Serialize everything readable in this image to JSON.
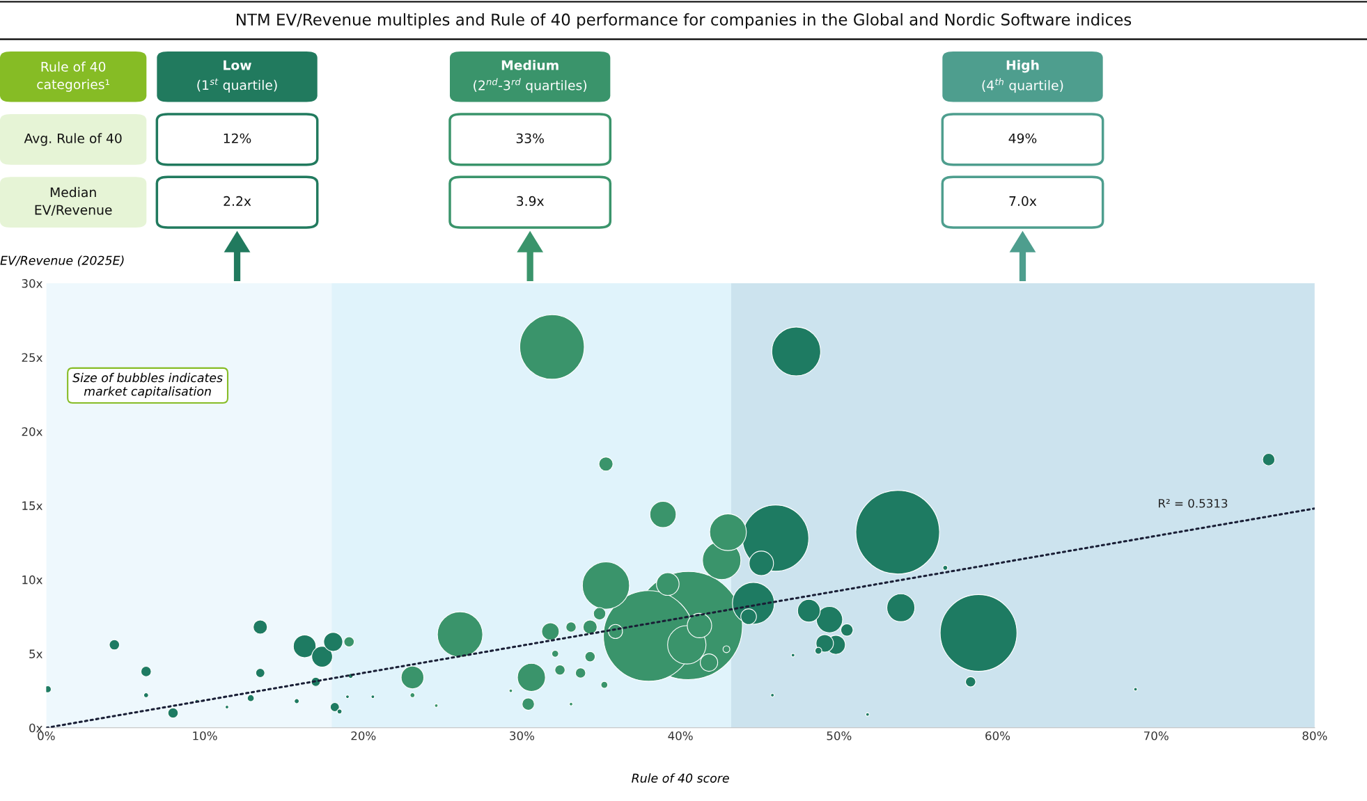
{
  "chart_data": [
    {
      "type": "other",
      "title": "NTM EV/Revenue multiples and Rule of 40 performance for companies in the Global and Nordic Software indices",
      "y_categories": [
        "Rule of 40\ncategories¹",
        "Avg. Rule of 40",
        "Median\nEV/Revenue"
      ],
      "categories": [
        "Low\n(1$^{st}$ quartile)",
        "Medium\n(2$^{nd}$-3$^{rd}$ quartiles)",
        "High\n(4$^{th}$ quartile)"
      ],
      "colors": [
        "#217a5e",
        "#3a946b",
        "#4e9e8e"
      ],
      "cell_labels": [
        [
          "12%",
          "33%",
          "49%"
        ],
        [
          "2.2x",
          "3.9x",
          "7.0x"
        ]
      ]
    },
    {
      "type": "bubble",
      "xlabel": "Rule of 40 score",
      "ylabel": "EV/Revenue (2025E)",
      "xlim": [
        0,
        80
      ],
      "xticks": [
        {
          "value": 0,
          "label": "0%"
        },
        {
          "value": 10,
          "label": "10%"
        },
        {
          "value": 20,
          "label": "20%"
        },
        {
          "value": 30,
          "label": "30%"
        },
        {
          "value": 40,
          "label": "40%"
        },
        {
          "value": 50,
          "label": "50%"
        },
        {
          "value": 60,
          "label": "60%"
        },
        {
          "value": 70,
          "label": "70%"
        },
        {
          "value": 80,
          "label": "80%"
        }
      ],
      "ylim": [
        0,
        30
      ],
      "yticks": [
        {
          "value": 0,
          "label": "0x"
        },
        {
          "value": 5,
          "label": "5x"
        },
        {
          "value": 10,
          "label": "10x"
        },
        {
          "value": 15,
          "label": "15x"
        },
        {
          "value": 20,
          "label": "20x"
        },
        {
          "value": 25,
          "label": "25x"
        },
        {
          "value": 30,
          "label": "30x"
        }
      ],
      "bands": [
        {
          "axis": "x",
          "from": 0,
          "to": 18,
          "color": "#eef8fd"
        },
        {
          "axis": "x",
          "from": 18,
          "to": 43.2,
          "color": "#e0f3fb"
        },
        {
          "axis": "x",
          "from": 43.2,
          "to": 80,
          "color": "#cce3ee"
        }
      ],
      "series": [
        {
          "type": "bubble",
          "x": [
            31.9,
            47.3,
            77.1,
            35.3,
            38.9,
            43.0,
            46.0,
            53.7,
            42.6,
            45.1,
            35.3,
            39.2,
            44.6,
            48.1,
            53.9,
            38.0,
            40.5,
            58.8,
            26.1,
            49.4,
            41.2,
            40.4,
            44.3,
            50.5,
            49.1,
            49.8,
            41.8,
            31.8,
            33.1,
            34.3,
            34.9,
            35.9,
            30.6,
            30.4,
            23.1,
            32.4,
            33.7,
            34.3,
            32.1,
            16.3,
            18.1,
            17.4,
            19.1,
            13.5,
            4.3,
            6.3,
            13.5,
            17.0,
            8.0,
            18.2,
            0.1,
            12.9,
            15.8,
            58.3,
            35.2,
            23.1,
            42.9,
            56.7,
            6.3,
            20.6,
            19.0,
            18.5,
            29.3,
            68.7,
            45.8,
            47.1,
            51.8,
            33.1,
            24.6,
            11.4,
            48.7,
            9.5,
            19.2
          ],
          "values": [
            25.7,
            25.4,
            18.1,
            17.8,
            14.4,
            13.2,
            12.8,
            13.2,
            11.3,
            11.1,
            9.6,
            9.7,
            8.4,
            7.9,
            8.1,
            6.2,
            6.9,
            6.4,
            6.3,
            7.3,
            6.9,
            5.6,
            7.5,
            6.6,
            5.7,
            5.6,
            4.4,
            6.5,
            6.8,
            6.8,
            7.7,
            6.5,
            3.4,
            1.6,
            3.4,
            3.9,
            3.7,
            4.8,
            5.0,
            5.5,
            5.8,
            4.8,
            5.8,
            6.8,
            5.6,
            3.8,
            3.7,
            3.1,
            1.0,
            1.4,
            2.6,
            2.0,
            1.8,
            3.1,
            2.9,
            2.2,
            5.3,
            10.8,
            2.2,
            2.1,
            2.1,
            1.1,
            2.5,
            2.6,
            2.2,
            4.9,
            0.9,
            1.6,
            1.5,
            1.4,
            5.2,
            1.8,
            3.5
          ],
          "sizes": [
            0.356,
            0.204,
            0.013,
            0.017,
            0.059,
            0.115,
            0.376,
            0.599,
            0.126,
            0.051,
            0.19,
            0.044,
            0.15,
            0.044,
            0.067,
            0.703,
            1.0,
            0.504,
            0.176,
            0.059,
            0.051,
            0.126,
            0.021,
            0.013,
            0.026,
            0.031,
            0.026,
            0.026,
            0.009,
            0.017,
            0.013,
            0.017,
            0.067,
            0.013,
            0.044,
            0.009,
            0.009,
            0.009,
            0.004,
            0.044,
            0.031,
            0.037,
            0.009,
            0.017,
            0.009,
            0.009,
            0.007,
            0.007,
            0.009,
            0.007,
            0.004,
            0.004,
            0.002,
            0.009,
            0.004,
            0.002,
            0.004,
            0.002,
            0.002,
            0.001,
            0.001,
            0.002,
            0.001,
            0.001,
            0.001,
            0.001,
            0.001,
            0.001,
            0.001,
            0.001,
            0.004,
            0.001,
            0.002
          ],
          "colors": [
            "#3a946b",
            "#1e7b62",
            "#1e7b62",
            "#3a946b",
            "#3a946b",
            "#3a946b",
            "#1e7b62",
            "#1e7b62",
            "#3a946b",
            "#1e7b62",
            "#3a946b",
            "#3a946b",
            "#1e7b62",
            "#1e7b62",
            "#1e7b62",
            "#3a946b",
            "#3a946b",
            "#1e7b62",
            "#3a946b",
            "#1e7b62",
            "#3a946b",
            "#3a946b",
            "#1e7b62",
            "#1e7b62",
            "#1e7b62",
            "#1e7b62",
            "#3a946b",
            "#3a946b",
            "#3a946b",
            "#3a946b",
            "#3a946b",
            "#3a946b",
            "#3a946b",
            "#3a946b",
            "#3a946b",
            "#3a946b",
            "#3a946b",
            "#3a946b",
            "#3a946b",
            "#1e7b62",
            "#1e7b62",
            "#1e7b62",
            "#3a946b",
            "#1e7b62",
            "#1e7b62",
            "#1e7b62",
            "#1e7b62",
            "#1e7b62",
            "#1e7b62",
            "#1e7b62",
            "#1e7b62",
            "#1e7b62",
            "#1e7b62",
            "#1e7b62",
            "#3a946b",
            "#3a946b",
            "#3a946b",
            "#1e7b62",
            "#1e7b62",
            "#1e7b62",
            "#1e7b62",
            "#1e7b62",
            "#3a946b",
            "#1e7b62",
            "#1e7b62",
            "#1e7b62",
            "#1e7b62",
            "#3a946b",
            "#3a946b",
            "#1e7b62",
            "#1e7b62",
            "#1e7b62",
            "#1e7b62"
          ]
        },
        {
          "type": "line",
          "x": [
            0,
            80
          ],
          "values": [
            0,
            14.8
          ],
          "color": "#1a1f36",
          "line_style": "dotted"
        }
      ],
      "annotations": [
        "R² = 0.5313",
        "Size of bubbles indicates\nmarket capitalisation"
      ],
      "grid": false
    }
  ]
}
